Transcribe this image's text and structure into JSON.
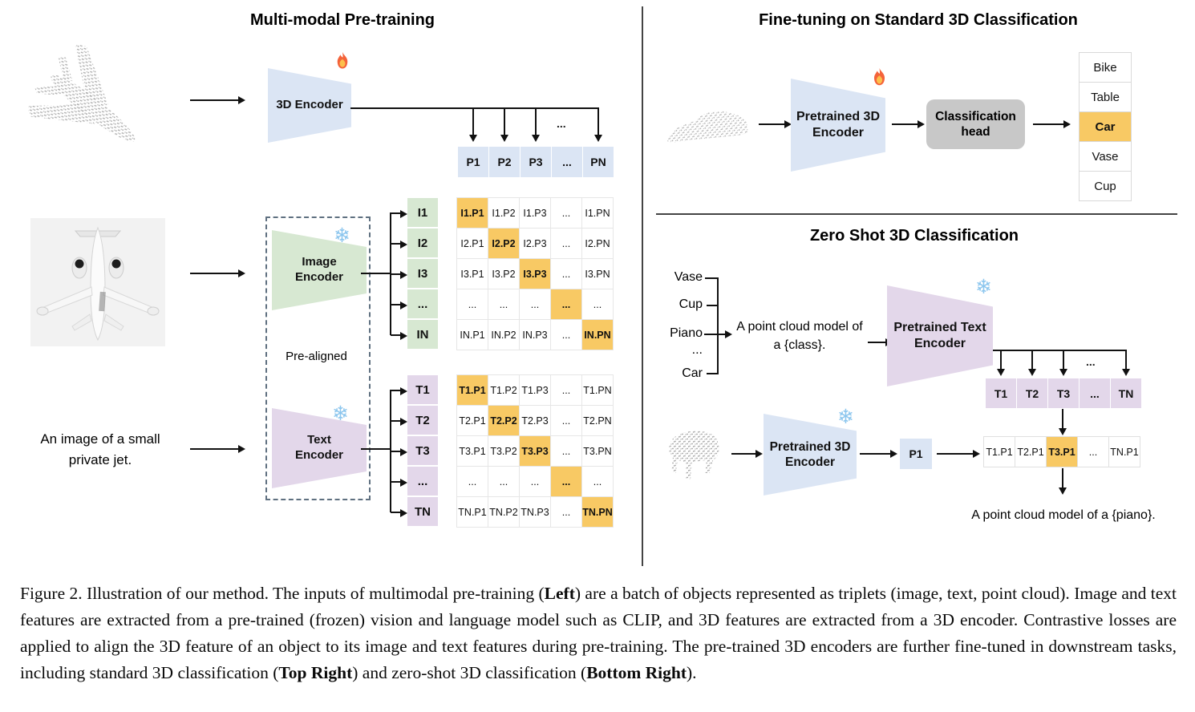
{
  "left": {
    "title": "Multi-modal Pre-training",
    "encoder_3d_label": "3D Encoder",
    "p_row": [
      "P1",
      "P2",
      "P3",
      "...",
      "PN"
    ],
    "dots_label": "...",
    "pre_aligned_label": "Pre-aligned",
    "image_encoder_label": "Image\nEncoder",
    "text_encoder_label": "Text\nEncoder",
    "text_input": "An image of a small\nprivate jet.",
    "image_matrix": {
      "row_headers": [
        "I1",
        "I2",
        "I3",
        "...",
        "IN"
      ],
      "cells": [
        [
          "I1.P1",
          "I1.P2",
          "I1.P3",
          "...",
          "I1.PN"
        ],
        [
          "I2.P1",
          "I2.P2",
          "I2.P3",
          "...",
          "I2.PN"
        ],
        [
          "I3.P1",
          "I3.P2",
          "I3.P3",
          "...",
          "I3.PN"
        ],
        [
          "...",
          "...",
          "...",
          "...",
          "..."
        ],
        [
          "IN.P1",
          "IN.P2",
          "IN.P3",
          "...",
          "IN.PN"
        ]
      ]
    },
    "text_matrix": {
      "row_headers": [
        "T1",
        "T2",
        "T3",
        "...",
        "TN"
      ],
      "cells": [
        [
          "T1.P1",
          "T1.P2",
          "T1.P3",
          "...",
          "T1.PN"
        ],
        [
          "T2.P1",
          "T2.P2",
          "T2.P3",
          "...",
          "T2.PN"
        ],
        [
          "T3.P1",
          "T3.P2",
          "T3.P3",
          "...",
          "T3.PN"
        ],
        [
          "...",
          "...",
          "...",
          "...",
          "..."
        ],
        [
          "TN.P1",
          "TN.P2",
          "TN.P3",
          "...",
          "TN.PN"
        ]
      ]
    }
  },
  "top_right": {
    "title": "Fine-tuning on Standard 3D Classification",
    "encoder_label": "Pretrained 3D\nEncoder",
    "head_label": "Classification\nhead",
    "classes": [
      "Bike",
      "Table",
      "Car",
      "Vase",
      "Cup"
    ],
    "highlighted_class_index": 2
  },
  "bottom_right": {
    "title": "Zero Shot 3D Classification",
    "class_labels": [
      "Vase",
      "Cup",
      "Piano",
      "...",
      "Car"
    ],
    "prompt": "A point cloud model of\na {class}.",
    "text_encoder_label": "Pretrained Text\nEncoder",
    "t_row": [
      "T1",
      "T2",
      "T3",
      "...",
      "TN"
    ],
    "t_dots_label": "...",
    "encoder_label": "Pretrained 3D\nEncoder",
    "p_cell": "P1",
    "sim_row": [
      "T1.P1",
      "T2.P1",
      "T3.P1",
      "...",
      "TN.P1"
    ],
    "sim_highlight_index": 2,
    "result_text": "A point cloud model of a {piano}."
  },
  "icons": {
    "snowflake_glyph": "❄",
    "flame_icon": "flame",
    "frozen_meaning": "frozen",
    "trainable_meaning": "trainable"
  },
  "colors": {
    "blue": "#dbe5f4",
    "green": "#d7e8d2",
    "purple": "#e3d7ea",
    "orange": "#f8c964",
    "head_gray": "#c8c8c8"
  },
  "caption": {
    "segments": [
      {
        "text": "Figure 2. Illustration of our method. The inputs of multimodal pre-training (",
        "bold": false
      },
      {
        "text": "Left",
        "bold": true
      },
      {
        "text": ") are a batch of objects represented as triplets (image, text, point cloud). Image and text features are extracted from a pre-trained (frozen) vision and language model such as CLIP, and 3D features are extracted from a 3D encoder. Contrastive losses are applied to align the 3D feature of an object to its image and text features during pre-training. The pre-trained 3D encoders are further fine-tuned in downstream tasks, including standard 3D classification (",
        "bold": false
      },
      {
        "text": "Top Right",
        "bold": true
      },
      {
        "text": ") and zero-shot 3D classification (",
        "bold": false
      },
      {
        "text": "Bottom Right",
        "bold": true
      },
      {
        "text": ").",
        "bold": false
      }
    ]
  }
}
